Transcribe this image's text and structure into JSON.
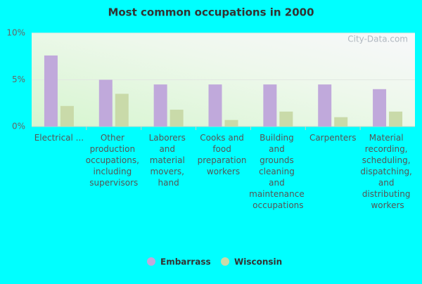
{
  "chart_data": {
    "type": "bar",
    "title": "Most common occupations in 2000",
    "watermark": "City-Data.com",
    "categories": [
      "Electrical ...",
      "Other production occupations, including supervisors",
      "Laborers and material movers, hand",
      "Cooks and food preparation workers",
      "Building and grounds cleaning and maintenance occupations",
      "Carpenters",
      "Material recording, scheduling, dispatching, and distributing workers"
    ],
    "series": [
      {
        "name": "Embarrass",
        "color": "#c0a9db",
        "values": [
          7.6,
          5.0,
          4.5,
          4.5,
          4.5,
          4.5,
          4.0
        ]
      },
      {
        "name": "Wisconsin",
        "color": "#c9daa9",
        "values": [
          2.2,
          3.5,
          1.8,
          0.7,
          1.6,
          1.0,
          1.6
        ]
      }
    ],
    "ylim": [
      0,
      10
    ],
    "yticks": [
      {
        "value": 0,
        "label": "0%"
      },
      {
        "value": 5,
        "label": "5%"
      },
      {
        "value": 10,
        "label": "10%"
      }
    ],
    "grid": true
  }
}
